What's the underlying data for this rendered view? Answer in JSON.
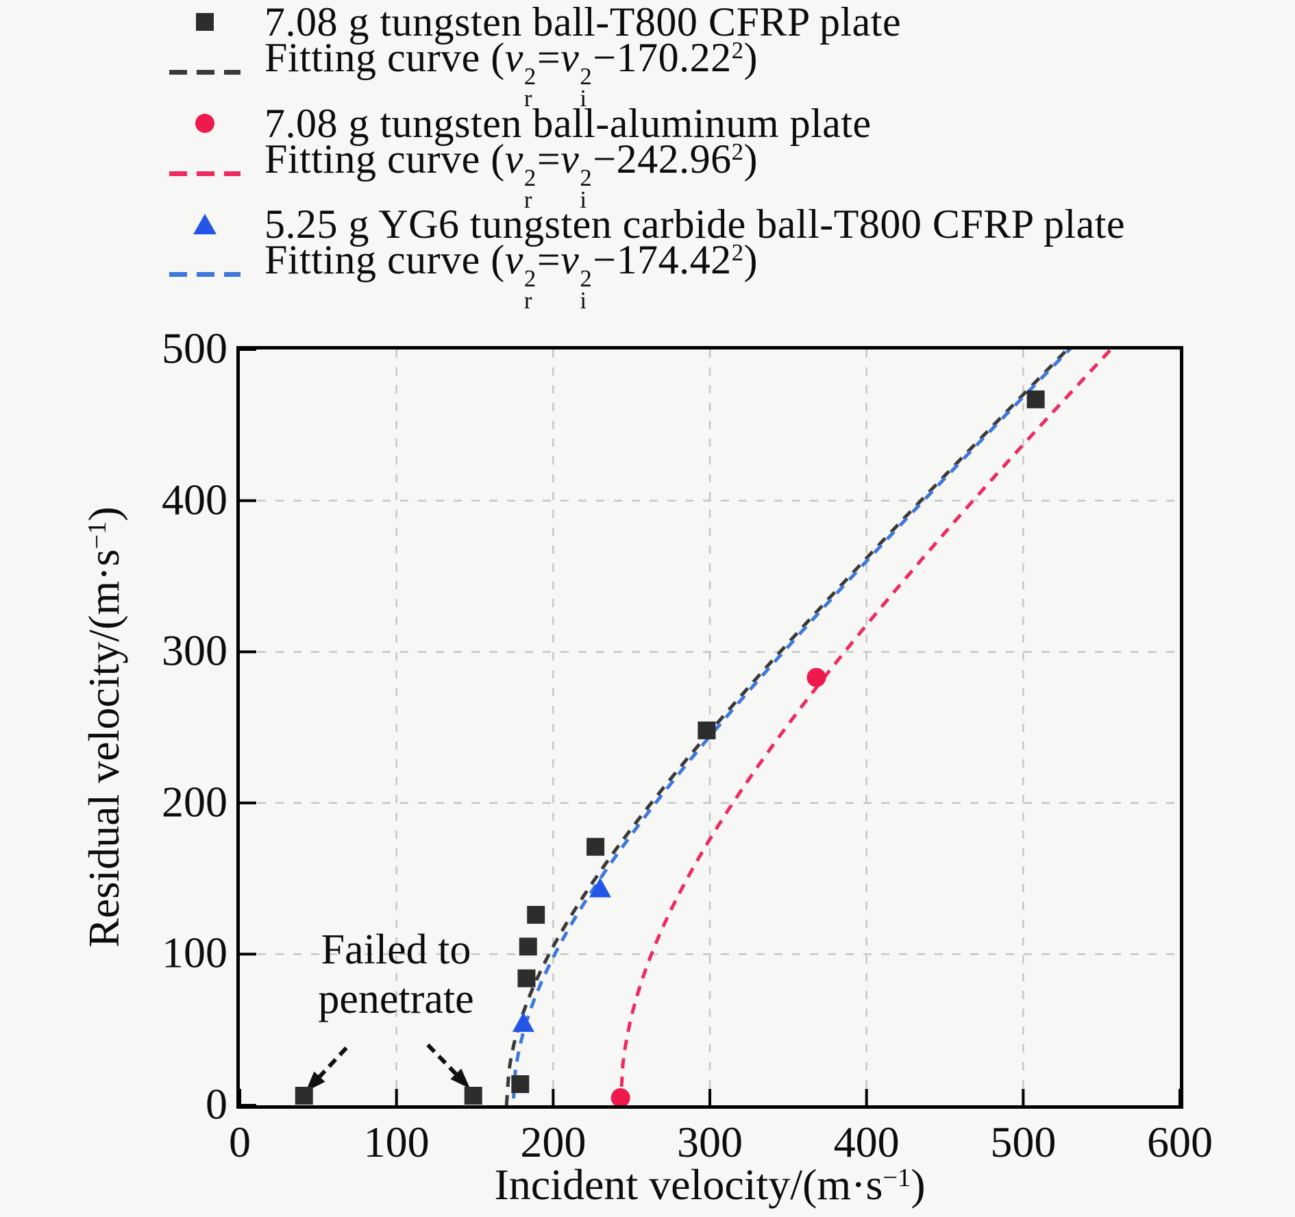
{
  "page": {
    "background": "#f7f7f6"
  },
  "math": {
    "v": "v",
    "sub_r": "r",
    "sub_i": "i",
    "sup_2": "2",
    "equals": "=",
    "minus": "−"
  },
  "legend": {
    "fit_prefix": "Fitting curve (",
    "fit_suffix": ")",
    "items": [
      {
        "marker": "square",
        "color": "#2d2d2d",
        "label": "7.08 g tungsten ball-T800 CFRP plate"
      },
      {
        "marker": "dash",
        "color": "#3a3a3a",
        "constant": "170.22"
      },
      {
        "marker": "circle",
        "color": "#ee1a4d",
        "label": "7.08 g tungsten ball-aluminum plate"
      },
      {
        "marker": "dash",
        "color": "#ee2a60",
        "constant": "242.96"
      },
      {
        "marker": "triangle",
        "color": "#2356e8",
        "label": "5.25 g YG6 tungsten carbide ball-T800 CFRP plate"
      },
      {
        "marker": "dash",
        "color": "#3d79d9",
        "constant": "174.42"
      }
    ]
  },
  "axes": {
    "x": {
      "label_prefix": "Incident velocity/(m·s",
      "label_sup": "−1",
      "label_suffix": ")",
      "ticks": [
        "0",
        "100",
        "200",
        "300",
        "400",
        "500",
        "600"
      ]
    },
    "y": {
      "label_prefix": "Residual velocity/(m·s",
      "label_sup": "−1",
      "label_suffix": ")",
      "ticks": [
        "0",
        "100",
        "200",
        "300",
        "400",
        "500"
      ]
    }
  },
  "annotation": {
    "line1": "Failed to",
    "line2": "penetrate"
  },
  "chart_data": {
    "type": "scatter",
    "title": "",
    "xlabel": "Incident velocity/(m·s−1)",
    "ylabel": "Residual velocity/(m·s−1)",
    "xlim": [
      0,
      600
    ],
    "ylim": [
      0,
      500
    ],
    "x_ticks": [
      0,
      100,
      200,
      300,
      400,
      500,
      600
    ],
    "y_ticks": [
      0,
      100,
      200,
      300,
      400,
      500
    ],
    "grid": "dashed light-gray at every 100 on both axes",
    "legend_position": "outside top-left",
    "series": [
      {
        "name": "7.08 g tungsten ball-T800 CFRP plate",
        "marker": "square",
        "color": "#2d2d2d",
        "points": [
          [
            41,
            0
          ],
          [
            149,
            0
          ],
          [
            179,
            14
          ],
          [
            183,
            84
          ],
          [
            184,
            105
          ],
          [
            189,
            126
          ],
          [
            227,
            171
          ],
          [
            298,
            248
          ],
          [
            508,
            467
          ]
        ],
        "note": "points with residual velocity 0 failed to penetrate"
      },
      {
        "name": "7.08 g tungsten ball-aluminum plate",
        "marker": "circle",
        "color": "#ee1a4d",
        "points": [
          [
            243,
            5
          ],
          [
            368,
            283
          ]
        ]
      },
      {
        "name": "5.25 g YG6 tungsten carbide ball-T800 CFRP plate",
        "marker": "triangle",
        "color": "#2356e8",
        "points": [
          [
            181,
            54
          ],
          [
            230,
            143
          ]
        ]
      }
    ],
    "fit_curves": [
      {
        "name": "Fitting curve (vr2=vi2−170.222)",
        "equation": "vr^2 = vi^2 - 170.22^2",
        "ballistic_limit": 170.22,
        "color": "#3a3a3a",
        "dash_offset": 0
      },
      {
        "name": "Fitting curve (vr2=vi2−174.422)",
        "equation": "vr^2 = vi^2 - 174.42^2",
        "ballistic_limit": 174.42,
        "color": "#3d79d9",
        "dash_offset": 17
      },
      {
        "name": "Fitting curve (vr2=vi2−242.962)",
        "equation": "vr^2 = vi^2 - 242.96^2",
        "ballistic_limit": 242.96,
        "color": "#ee2a60",
        "dash_offset": 0
      }
    ],
    "annotation": {
      "text": [
        "Failed to",
        "penetrate"
      ],
      "arrows_data_coords": [
        [
          68,
          38,
          42,
          9
        ],
        [
          120,
          40,
          147,
          11
        ]
      ]
    }
  }
}
